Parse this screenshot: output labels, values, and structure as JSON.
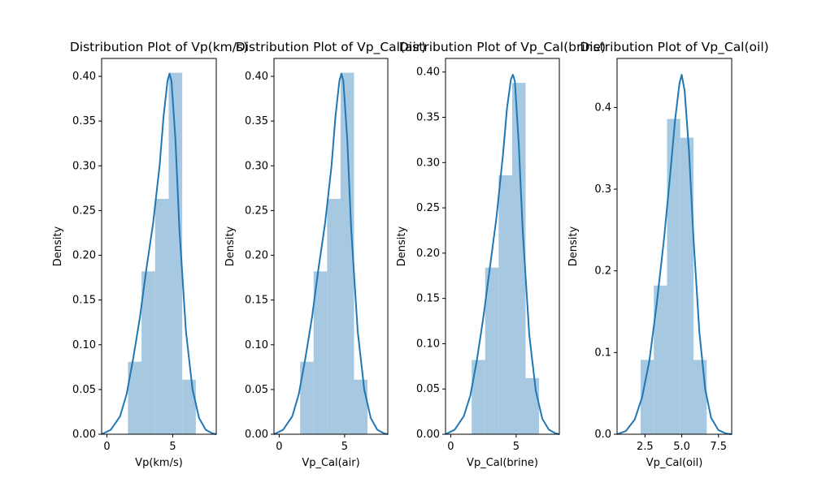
{
  "chart_data": [
    {
      "type": "bar",
      "title": "Distribution Plot of Vp(km/s)",
      "xlabel": "Vp(km/s)",
      "ylabel": "Density",
      "xlim": [
        -0.4,
        8.3
      ],
      "ylim": [
        0,
        0.42
      ],
      "xticks": [
        0,
        5
      ],
      "yticks": [
        0.0,
        0.05,
        0.1,
        0.15,
        0.2,
        0.25,
        0.3,
        0.35,
        0.4
      ],
      "ytick_labels": [
        "0.00",
        "0.05",
        "0.10",
        "0.15",
        "0.20",
        "0.25",
        "0.30",
        "0.35",
        "0.40"
      ],
      "hist": {
        "bin_edges": [
          1.6,
          2.63,
          3.66,
          4.69,
          5.72,
          6.75
        ],
        "density": [
          0.081,
          0.182,
          0.263,
          0.404,
          0.061
        ]
      },
      "kde": {
        "x": [
          -0.4,
          0.3,
          1.0,
          1.5,
          2.0,
          2.5,
          3.0,
          3.5,
          4.0,
          4.3,
          4.6,
          4.75,
          4.9,
          5.2,
          5.5,
          6.0,
          6.5,
          7.0,
          7.5,
          8.0,
          8.3
        ],
        "y": [
          0.0,
          0.005,
          0.02,
          0.045,
          0.085,
          0.13,
          0.185,
          0.235,
          0.3,
          0.355,
          0.395,
          0.403,
          0.395,
          0.33,
          0.23,
          0.115,
          0.05,
          0.018,
          0.005,
          0.001,
          0.0
        ]
      }
    },
    {
      "type": "bar",
      "title": "Distribution Plot of Vp_Cal(air)",
      "xlabel": "Vp_Cal(air)",
      "ylabel": "Density",
      "xlim": [
        -0.4,
        8.3
      ],
      "ylim": [
        0,
        0.42
      ],
      "xticks": [
        0,
        5
      ],
      "yticks": [
        0.0,
        0.05,
        0.1,
        0.15,
        0.2,
        0.25,
        0.3,
        0.35,
        0.4
      ],
      "ytick_labels": [
        "0.00",
        "0.05",
        "0.10",
        "0.15",
        "0.20",
        "0.25",
        "0.30",
        "0.35",
        "0.40"
      ],
      "hist": {
        "bin_edges": [
          1.6,
          2.63,
          3.66,
          4.69,
          5.72,
          6.75
        ],
        "density": [
          0.081,
          0.182,
          0.263,
          0.404,
          0.061
        ]
      },
      "kde": {
        "x": [
          -0.4,
          0.3,
          1.0,
          1.5,
          2.0,
          2.5,
          3.0,
          3.5,
          4.0,
          4.3,
          4.6,
          4.75,
          4.9,
          5.2,
          5.5,
          6.0,
          6.5,
          7.0,
          7.5,
          8.0,
          8.3
        ],
        "y": [
          0.0,
          0.005,
          0.02,
          0.045,
          0.085,
          0.13,
          0.185,
          0.235,
          0.3,
          0.355,
          0.395,
          0.403,
          0.395,
          0.33,
          0.23,
          0.115,
          0.05,
          0.018,
          0.005,
          0.001,
          0.0
        ]
      }
    },
    {
      "type": "bar",
      "title": "Distribution Plot of Vp_Cal(brine)",
      "xlabel": "Vp_Cal(brine)",
      "ylabel": "Density",
      "xlim": [
        -0.4,
        8.3
      ],
      "ylim": [
        0,
        0.415
      ],
      "xticks": [
        0,
        5
      ],
      "yticks": [
        0.0,
        0.05,
        0.1,
        0.15,
        0.2,
        0.25,
        0.3,
        0.35,
        0.4
      ],
      "ytick_labels": [
        "0.00",
        "0.05",
        "0.10",
        "0.15",
        "0.20",
        "0.25",
        "0.30",
        "0.35",
        "0.40"
      ],
      "hist": {
        "bin_edges": [
          1.6,
          2.63,
          3.66,
          4.69,
          5.72,
          6.75
        ],
        "density": [
          0.082,
          0.184,
          0.286,
          0.388,
          0.062
        ]
      },
      "kde": {
        "x": [
          -0.4,
          0.3,
          1.0,
          1.5,
          2.0,
          2.5,
          3.0,
          3.5,
          4.0,
          4.3,
          4.6,
          4.75,
          4.9,
          5.2,
          5.5,
          6.0,
          6.5,
          7.0,
          7.5,
          8.0,
          8.3
        ],
        "y": [
          0.0,
          0.005,
          0.02,
          0.043,
          0.082,
          0.13,
          0.185,
          0.24,
          0.31,
          0.36,
          0.392,
          0.397,
          0.39,
          0.32,
          0.225,
          0.11,
          0.048,
          0.017,
          0.005,
          0.001,
          0.0
        ]
      }
    },
    {
      "type": "bar",
      "title": "Distribution Plot of Vp_Cal(oil)",
      "xlabel": "Vp_Cal(oil)",
      "ylabel": "Density",
      "xlim": [
        0.6,
        8.4
      ],
      "ylim": [
        0,
        0.46
      ],
      "xticks": [
        2.5,
        5.0,
        7.5
      ],
      "xtick_labels": [
        "2.5",
        "5.0",
        "7.5"
      ],
      "yticks": [
        0.0,
        0.1,
        0.2,
        0.3,
        0.4
      ],
      "ytick_labels": [
        "0.0",
        "0.1",
        "0.2",
        "0.3",
        "0.4"
      ],
      "hist": {
        "bin_edges": [
          2.2,
          3.1,
          4.0,
          4.9,
          5.8,
          6.7
        ],
        "density": [
          0.091,
          0.182,
          0.386,
          0.363,
          0.091
        ]
      },
      "kde": {
        "x": [
          0.6,
          1.2,
          1.8,
          2.3,
          2.8,
          3.3,
          3.8,
          4.2,
          4.55,
          4.85,
          5.0,
          5.2,
          5.5,
          5.8,
          6.2,
          6.6,
          7.0,
          7.5,
          8.0,
          8.4
        ],
        "y": [
          0.0,
          0.004,
          0.018,
          0.045,
          0.09,
          0.16,
          0.24,
          0.315,
          0.385,
          0.43,
          0.44,
          0.42,
          0.345,
          0.24,
          0.125,
          0.055,
          0.02,
          0.005,
          0.001,
          0.0
        ]
      }
    }
  ],
  "style": {
    "bar_color": "#a6c8e0",
    "line_color": "#1f77b4",
    "axis_color": "#000000"
  }
}
